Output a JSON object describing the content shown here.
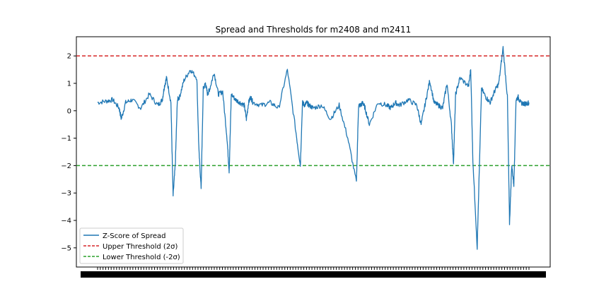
{
  "chart_data": {
    "type": "line",
    "title": "Spread and Thresholds for m2408 and m2411",
    "xlabel": "",
    "ylabel": "",
    "ylim": [
      -5.7,
      2.7
    ],
    "yticks": [
      2,
      1,
      0,
      -1,
      -2,
      -3,
      -4,
      -5
    ],
    "xlim": [
      0,
      1
    ],
    "x_tick_labels_note": "illegible overlapping date ticks",
    "series": [
      {
        "name": "Z-Score of Spread",
        "color": "#1f77b4",
        "x": [
          0.0,
          0.02,
          0.035,
          0.05,
          0.055,
          0.065,
          0.08,
          0.1,
          0.12,
          0.14,
          0.15,
          0.155,
          0.16,
          0.17,
          0.175,
          0.18,
          0.185,
          0.19,
          0.2,
          0.215,
          0.23,
          0.235,
          0.24,
          0.245,
          0.25,
          0.255,
          0.26,
          0.27,
          0.28,
          0.29,
          0.3,
          0.305,
          0.31,
          0.32,
          0.33,
          0.34,
          0.345,
          0.35,
          0.355,
          0.36,
          0.38,
          0.4,
          0.42,
          0.44,
          0.46,
          0.47,
          0.475,
          0.48,
          0.485,
          0.49,
          0.5,
          0.52,
          0.54,
          0.56,
          0.58,
          0.6,
          0.605,
          0.61,
          0.615,
          0.62,
          0.63,
          0.65,
          0.67,
          0.68,
          0.69,
          0.7,
          0.72,
          0.74,
          0.75,
          0.76,
          0.77,
          0.78,
          0.79,
          0.8,
          0.81,
          0.82,
          0.825,
          0.83,
          0.84,
          0.86,
          0.865,
          0.87,
          0.88,
          0.89,
          0.9,
          0.91,
          0.92,
          0.93,
          0.94,
          0.95,
          0.955,
          0.96,
          0.965,
          0.97,
          0.975,
          0.98,
          0.99,
          1.0
        ],
        "values": [
          0.3,
          0.35,
          0.4,
          0.1,
          -0.3,
          0.3,
          0.4,
          0.1,
          0.6,
          0.2,
          0.4,
          0.9,
          1.2,
          0.3,
          -3.1,
          -2.0,
          0.4,
          0.5,
          1.1,
          1.5,
          1.2,
          -1.5,
          -2.8,
          0.8,
          1.0,
          0.6,
          0.8,
          1.4,
          0.6,
          0.7,
          -1.0,
          -2.2,
          0.6,
          0.4,
          0.3,
          0.2,
          -0.3,
          0.3,
          0.5,
          0.3,
          0.2,
          0.3,
          0.1,
          1.5,
          -0.8,
          -2.0,
          0.3,
          0.2,
          0.3,
          0.2,
          0.1,
          0.2,
          -0.3,
          0.2,
          -1.0,
          -2.6,
          0.2,
          0.2,
          0.3,
          0.1,
          -0.5,
          0.3,
          0.2,
          0.1,
          0.3,
          0.2,
          0.4,
          0.2,
          -0.5,
          0.3,
          1.1,
          0.3,
          0.2,
          0.1,
          1.0,
          -0.5,
          -1.9,
          0.6,
          1.2,
          0.9,
          1.5,
          -1.8,
          -5.0,
          0.8,
          0.5,
          0.3,
          0.7,
          1.0,
          2.3,
          0.5,
          -4.1,
          -2.0,
          -2.7,
          0.4,
          0.5,
          0.3,
          0.25,
          0.3
        ]
      },
      {
        "name": "Upper Threshold (2σ)",
        "color": "#d62728",
        "value": 2
      },
      {
        "name": "Lower Threshold (-2σ)",
        "color": "#2ca02c",
        "value": -2
      }
    ],
    "legend_position": "lower-left",
    "grid": false
  }
}
